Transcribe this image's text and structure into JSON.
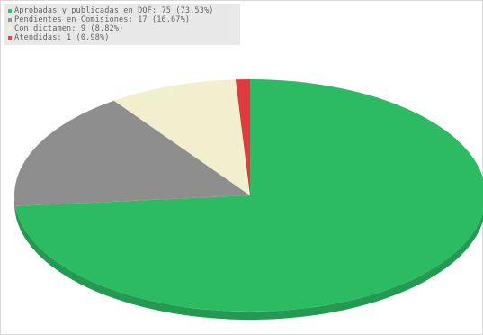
{
  "chart_data": {
    "type": "pie",
    "title": "",
    "legend_position": "top-left",
    "slices": [
      {
        "label": "Aprobadas y publicadas en DOF: 75  (73.53%)",
        "value": 75,
        "percent": 73.53,
        "color": "#2cbb63"
      },
      {
        "label": "Pendientes en Comisiones: 17  (16.67%)",
        "value": 17,
        "percent": 16.67,
        "color": "#8e8e8e"
      },
      {
        "label": "Con dictamen: 9  (8.82%)",
        "value": 9,
        "percent": 8.82,
        "color": "#f2efcf"
      },
      {
        "label": "Atendidas: 1  (0.98%)",
        "value": 1,
        "percent": 0.98,
        "color": "#e23a3f"
      }
    ]
  }
}
